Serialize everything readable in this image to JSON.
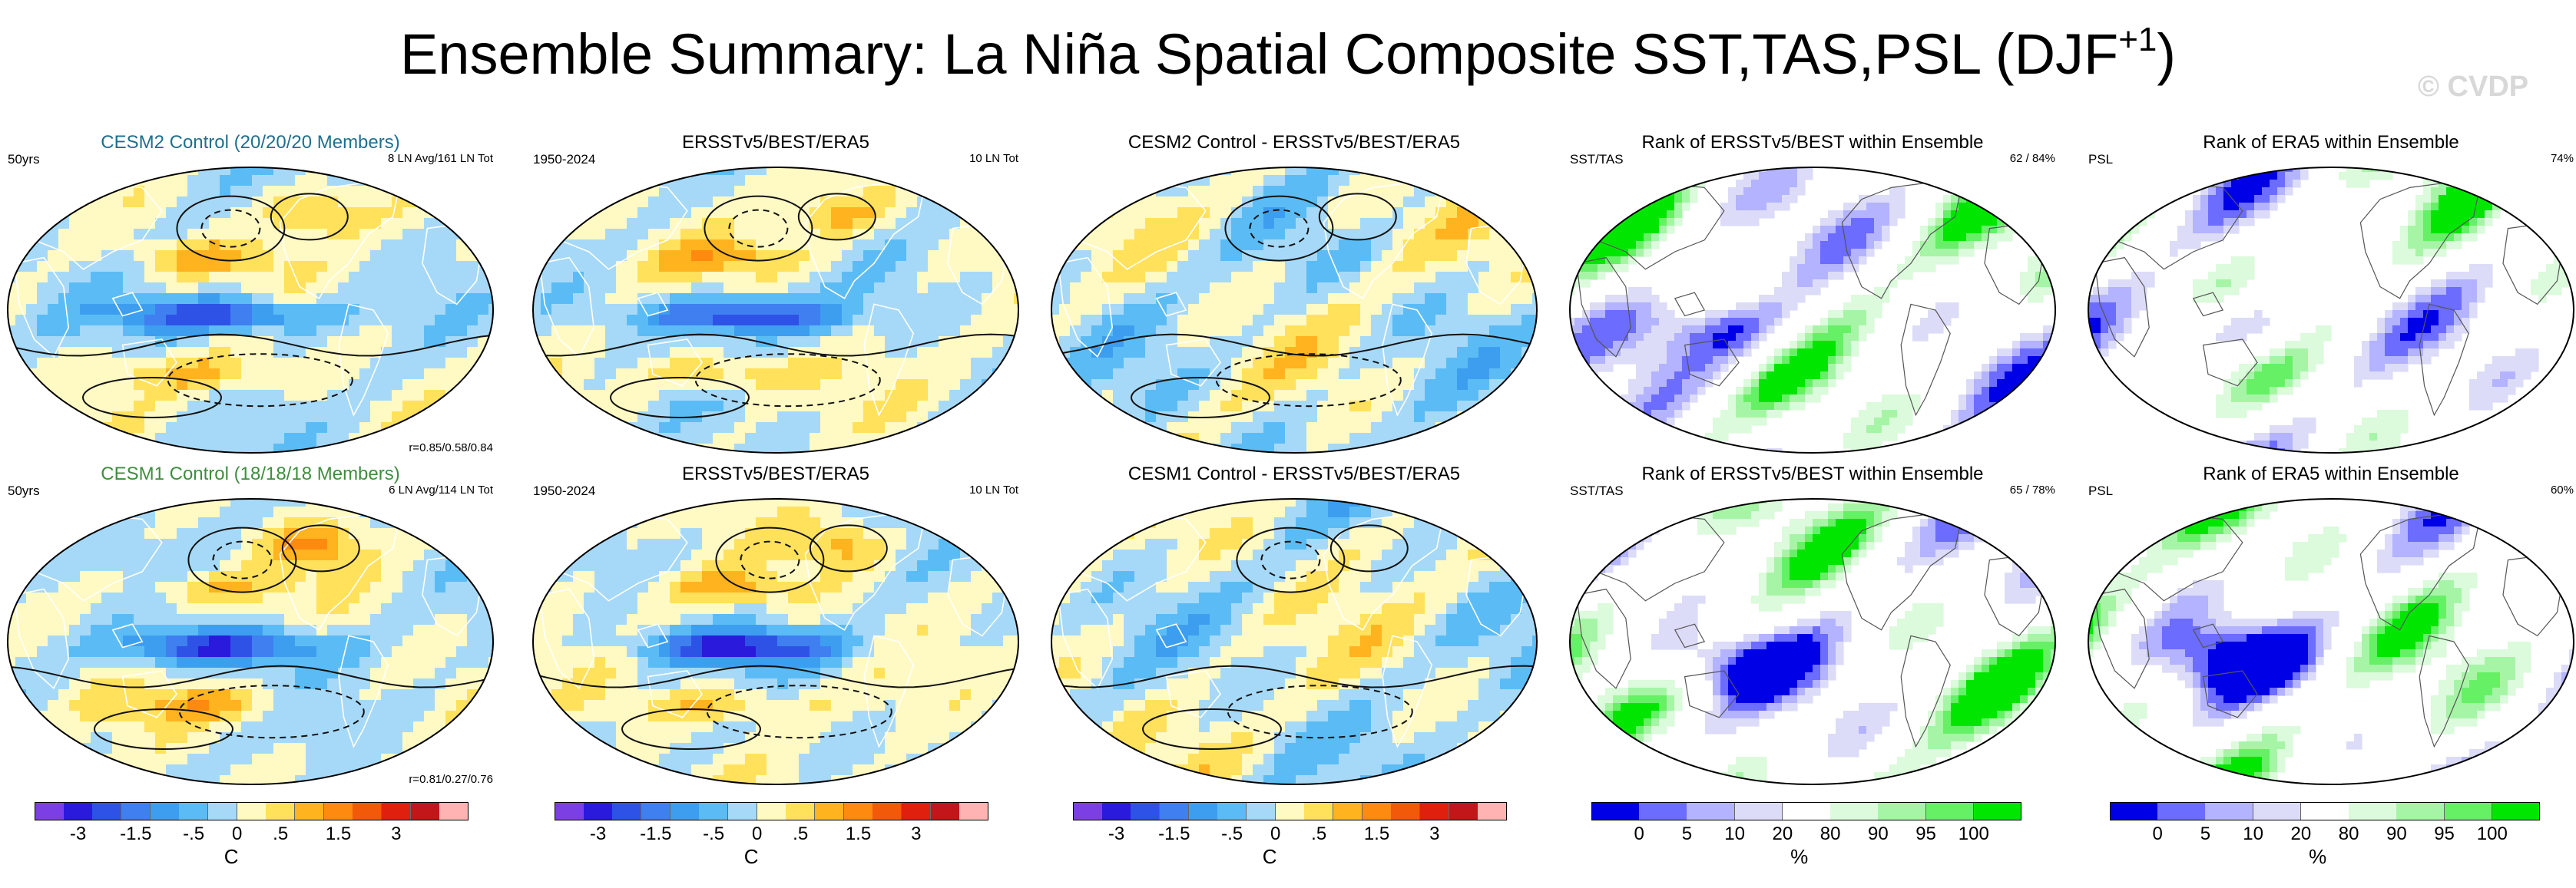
{
  "title": "Ensemble Summary: La Niña Spatial Composite SST,TAS,PSL (DJF",
  "title_superscript": "+1",
  "title_suffix": ")",
  "watermark": "© CVDP",
  "chart_data": [
    {
      "type": "heatmap",
      "title": "CESM2 Control (20/20/20 Members)",
      "title_color": "#1f6f8f",
      "left_label": "50yrs",
      "right_label": "8 LN Avg/161 LN Tot",
      "bottom_label": "r=0.85/0.58/0.84",
      "colormap": "temperature",
      "variant": 0
    },
    {
      "type": "heatmap",
      "title": "ERSSTv5/BEST/ERA5",
      "left_label": "1950-2024",
      "right_label": "10 LN Tot",
      "colormap": "temperature",
      "variant": 1
    },
    {
      "type": "heatmap",
      "title": "CESM2 Control - ERSSTv5/BEST/ERA5",
      "colormap": "temperature",
      "variant": 2
    },
    {
      "type": "heatmap",
      "title": "Rank of ERSSTv5/BEST within Ensemble",
      "left_label": "SST/TAS",
      "right_label": "62 /  84%",
      "colormap": "rank",
      "variant": 3
    },
    {
      "type": "heatmap",
      "title": "Rank of ERA5 within Ensemble",
      "left_label": "PSL",
      "right_label": "74%",
      "colormap": "rank",
      "variant": 4
    },
    {
      "type": "heatmap",
      "title": "CESM1 Control (18/18/18 Members)",
      "title_color": "#3e8e3e",
      "left_label": "50yrs",
      "right_label": "6 LN Avg/114 LN Tot",
      "bottom_label": "r=0.81/0.27/0.76",
      "colormap": "temperature",
      "variant": 5
    },
    {
      "type": "heatmap",
      "title": "ERSSTv5/BEST/ERA5",
      "left_label": "1950-2024",
      "right_label": "10 LN Tot",
      "colormap": "temperature",
      "variant": 6
    },
    {
      "type": "heatmap",
      "title": "CESM1 Control - ERSSTv5/BEST/ERA5",
      "colormap": "temperature",
      "variant": 7
    },
    {
      "type": "heatmap",
      "title": "Rank of ERSSTv5/BEST within Ensemble",
      "left_label": "SST/TAS",
      "right_label": "65 /  78%",
      "colormap": "rank",
      "variant": 8
    },
    {
      "type": "heatmap",
      "title": "Rank of ERA5 within Ensemble",
      "left_label": "PSL",
      "right_label": "60%",
      "colormap": "rank",
      "variant": 9
    }
  ],
  "colorbars": {
    "temperature": {
      "colors": [
        "#7b3fe4",
        "#2a1adb",
        "#2f52e6",
        "#3f7ff0",
        "#3d9ef0",
        "#5bbcf5",
        "#a6d9f7",
        "#fff9c4",
        "#ffe15c",
        "#ffb31f",
        "#ff8a10",
        "#f25a0a",
        "#e0200e",
        "#c2161b",
        "#ffb3b3"
      ],
      "ticks": [
        "-3",
        "-1.5",
        "-.5",
        "0",
        ".5",
        "1.5",
        "3"
      ],
      "unit": "C"
    },
    "rank": {
      "colors": [
        "#0000e6",
        "#6c6cff",
        "#b3b3ff",
        "#dcdcf8",
        "#ffffff",
        "#dcfadc",
        "#a6f5a6",
        "#66f066",
        "#00e600"
      ],
      "ticks": [
        "0",
        "5",
        "10",
        "20",
        "80",
        "90",
        "95",
        "100"
      ],
      "unit": "%"
    }
  }
}
